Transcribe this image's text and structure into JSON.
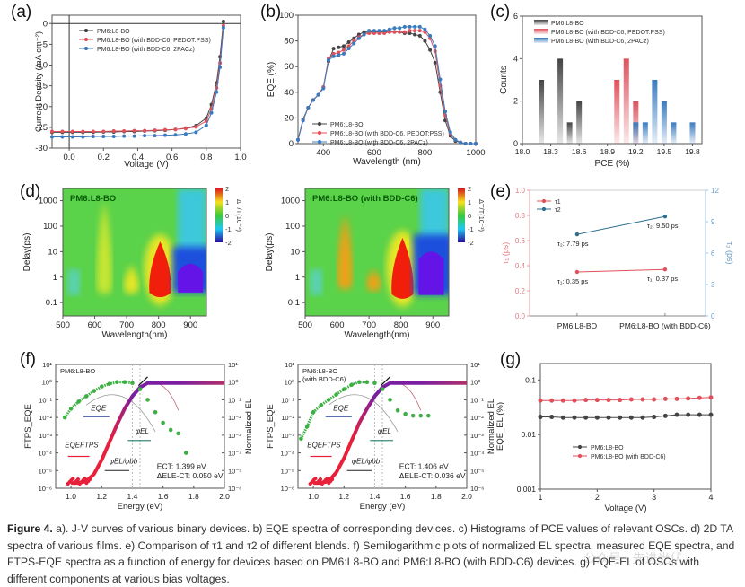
{
  "figure": {
    "caption_label": "Figure 4.",
    "caption_text": " a). J-V curves of various binary devices. b) EQE spectra of corresponding devices. c) Histograms of PCE values of relevant OSCs. d) 2D TA spectra of various films. e) Comparison of τ1 and τ2 of different blends. f) Semilogarithmic plots of normalized EL spectra, measured EQE spectra, and FTPS-EQE spectra as a function of energy for devices based on PM6:L8-BO and PM6:L8-BO (with BDD-C6) devices. g) EQE-EL of OSCs with different components at various bias voltages.",
    "watermark": "公众号 · 先进光伏"
  },
  "colors": {
    "black": "#444444",
    "red": "#e0505a",
    "blue": "#3a7bbf",
    "green": "#3cb043",
    "purple": "#7a1fa0"
  },
  "chart_data": [
    {
      "id": "a",
      "panel_label": "(a)",
      "type": "line",
      "xlabel": "Voltage (V)",
      "ylabel": "Current Density (mA cm⁻²)",
      "xlim": [
        -0.1,
        1.0
      ],
      "ylim": [
        -30,
        2
      ],
      "xticks": [
        0.0,
        0.2,
        0.4,
        0.6,
        0.8,
        1.0
      ],
      "yticks": [
        0,
        -5,
        -10,
        -15,
        -20,
        -25,
        -30
      ],
      "legend_position": "top-left",
      "x": [
        -0.1,
        -0.04,
        0.02,
        0.08,
        0.14,
        0.2,
        0.26,
        0.32,
        0.38,
        0.44,
        0.5,
        0.56,
        0.62,
        0.68,
        0.74,
        0.8,
        0.83,
        0.86,
        0.88,
        0.9
      ],
      "series": [
        {
          "name": "PM6:L8-BO",
          "color": "#444444",
          "values": [
            -26.2,
            -26.2,
            -26.2,
            -26.2,
            -26.2,
            -26.1,
            -26.1,
            -26.0,
            -26.0,
            -25.9,
            -25.8,
            -25.7,
            -25.5,
            -25.2,
            -24.6,
            -22.8,
            -19.5,
            -14.3,
            -8.0,
            0.5
          ]
        },
        {
          "name": "PM6:L8-BO (with BDD-C6, PEDOT:PSS)",
          "color": "#e0505a",
          "values": [
            -26.0,
            -26.0,
            -26.0,
            -26.0,
            -26.0,
            -26.0,
            -25.9,
            -25.9,
            -25.8,
            -25.8,
            -25.7,
            -25.6,
            -25.5,
            -25.3,
            -24.9,
            -23.5,
            -20.5,
            -15.5,
            -9.5,
            -0.5
          ]
        },
        {
          "name": "PM6:L8-BO (with BDD-C6, 2PACz)",
          "color": "#3a7bbf",
          "values": [
            -27.3,
            -27.3,
            -27.3,
            -27.3,
            -27.2,
            -27.2,
            -27.2,
            -27.1,
            -27.1,
            -27.0,
            -27.0,
            -26.9,
            -26.8,
            -26.6,
            -26.2,
            -24.5,
            -21.5,
            -16.5,
            -10.5,
            -1.0
          ]
        }
      ]
    },
    {
      "id": "b",
      "panel_label": "(b)",
      "type": "line",
      "xlabel": "Wavelength (nm)",
      "ylabel": "EQE (%)",
      "xlim": [
        300,
        1000
      ],
      "ylim": [
        0,
        100
      ],
      "xticks": [
        400,
        600,
        800,
        1000
      ],
      "yticks": [
        0,
        20,
        40,
        60,
        80,
        100
      ],
      "legend_position": "bottom-left",
      "x": [
        300,
        320,
        340,
        360,
        380,
        400,
        420,
        440,
        460,
        480,
        500,
        520,
        540,
        560,
        580,
        600,
        620,
        640,
        660,
        680,
        700,
        720,
        740,
        760,
        780,
        800,
        820,
        840,
        860,
        880,
        900,
        920,
        940,
        960,
        980,
        1000
      ],
      "series": [
        {
          "name": "PM6:L8-BO",
          "color": "#444444",
          "values": [
            3,
            19,
            28,
            34,
            38,
            44,
            64,
            74,
            75,
            76,
            79,
            82,
            85,
            87,
            87,
            87,
            87,
            87,
            87,
            87,
            87,
            86,
            86,
            85,
            84,
            80,
            73,
            63,
            40,
            18,
            6,
            2,
            1,
            0,
            0,
            0
          ]
        },
        {
          "name": "PM6:L8-BO (with BDD-C6, PEDOT:PSS)",
          "color": "#e0505a",
          "values": [
            3,
            18,
            28,
            34,
            38,
            44,
            66,
            70,
            71,
            73,
            76,
            80,
            83,
            85,
            86,
            86,
            86,
            86,
            87,
            87,
            87,
            87,
            88,
            88,
            88,
            87,
            82,
            72,
            45,
            22,
            8,
            3,
            1,
            0,
            0,
            0
          ]
        },
        {
          "name": "PM6:L8-BO (with BDD-C6, 2PACz)",
          "color": "#3a7bbf",
          "values": [
            3,
            18,
            28,
            34,
            38,
            43,
            65,
            68,
            69,
            70,
            74,
            78,
            82,
            85,
            88,
            88,
            88,
            88,
            89,
            90,
            90,
            91,
            91,
            91,
            91,
            89,
            84,
            76,
            50,
            25,
            9,
            3,
            1,
            0,
            0,
            0
          ]
        }
      ]
    },
    {
      "id": "c",
      "panel_label": "(c)",
      "type": "bar",
      "xlabel": "PCE (%)",
      "ylabel": "Counts",
      "xlim": [
        18.0,
        19.9
      ],
      "ylim": [
        0,
        6
      ],
      "xticks": [
        18.0,
        18.3,
        18.6,
        18.9,
        19.2,
        19.5,
        19.8
      ],
      "yticks": [
        0,
        2,
        4,
        6
      ],
      "legend_position": "top-left",
      "series": [
        {
          "name": "PM6:L8-BO",
          "color": "#444444",
          "x": [
            18.2,
            18.4,
            18.5,
            18.6
          ],
          "values": [
            3,
            4,
            1,
            2
          ]
        },
        {
          "name": "PM6:L8-BO (with BDD-C6, PEDOT:PSS)",
          "color": "#e0505a",
          "x": [
            19.0,
            19.1,
            19.2
          ],
          "values": [
            3,
            4,
            2
          ]
        },
        {
          "name": "PM6:L8-BO (with BDD-C6, 2PACz)",
          "color": "#3a7bbf",
          "x": [
            19.2,
            19.3,
            19.4,
            19.5,
            19.6,
            19.8
          ],
          "values": [
            1,
            1,
            3,
            2,
            1,
            1
          ]
        }
      ]
    },
    {
      "id": "d1",
      "panel_label": "(d)",
      "type": "heatmap",
      "title": "PM6:L8-BO",
      "xlabel": "Wavelength(nm)",
      "ylabel": "Delay(ps)",
      "xlim": [
        500,
        950
      ],
      "ylim_log": [
        0.03,
        3000
      ],
      "xticks": [
        500,
        600,
        700,
        800,
        900
      ],
      "yticks": [
        "0.1",
        "1",
        "10",
        "100",
        "1000"
      ],
      "colorbar": {
        "label": "ΔT/T(10⁻³)",
        "ticks": [
          2,
          1,
          0,
          -1,
          -2
        ]
      },
      "features": [
        {
          "wavelength": 630,
          "delay_range": [
            0.2,
            1000
          ],
          "value": 0.8
        },
        {
          "wavelength": 715,
          "delay_range": [
            0.2,
            3
          ],
          "value": 1.0
        },
        {
          "wavelength": 805,
          "delay_range": [
            0.15,
            25
          ],
          "value": 2.0
        },
        {
          "wavelength": 900,
          "delay_range": [
            0.25,
            5
          ],
          "value": -2.0
        }
      ]
    },
    {
      "id": "d2",
      "type": "heatmap",
      "title": "PM6:L8-BO (with BDD-C6)",
      "xlabel": "Wavelength(nm)",
      "ylabel": "Delay(ps)",
      "xlim": [
        500,
        950
      ],
      "ylim_log": [
        0.03,
        3000
      ],
      "xticks": [
        500,
        600,
        700,
        800,
        900
      ],
      "yticks": [
        "0.1",
        "1",
        "10",
        "100",
        "1000"
      ],
      "colorbar": {
        "label": "ΔT/T(10⁻³)",
        "ticks": [
          2,
          1,
          0,
          -1,
          -2
        ]
      },
      "features": [
        {
          "wavelength": 625,
          "delay_range": [
            0.3,
            300
          ],
          "value": 1.5
        },
        {
          "wavelength": 715,
          "delay_range": [
            0.25,
            2
          ],
          "value": 1.3
        },
        {
          "wavelength": 805,
          "delay_range": [
            0.13,
            35
          ],
          "value": 2.0
        },
        {
          "wavelength": 895,
          "delay_range": [
            0.2,
            15
          ],
          "value": -2.0
        }
      ]
    },
    {
      "id": "e",
      "panel_label": "(e)",
      "type": "line",
      "categories": [
        "PM6:L8-BO",
        "PM6:L8-BO (with BDD-C6)"
      ],
      "ylabel_left": "τ₁ (ps)",
      "ylabel_right": "τ₂ (ps)",
      "ylim_left": [
        0,
        1.0
      ],
      "ylim_right": [
        0,
        12
      ],
      "yticks_left": [
        "0.0",
        "0.2",
        "0.4",
        "0.6",
        "0.8",
        "1.0"
      ],
      "yticks_right": [
        0,
        3,
        6,
        9,
        12
      ],
      "legend_position": "top-left",
      "series": [
        {
          "name": "τ1",
          "axis": "left",
          "color": "#e0505a",
          "values": [
            0.35,
            0.37
          ],
          "labels": [
            "τ₁: 0.35 ps",
            "τ₁: 0.37 ps"
          ]
        },
        {
          "name": "τ2",
          "axis": "right",
          "color": "#2e6f8e",
          "values": [
            7.79,
            9.5
          ],
          "labels": [
            "τ₂: 7.79 ps",
            "τ₂: 9.50 ps"
          ]
        }
      ]
    },
    {
      "id": "f1",
      "panel_label": "(f)",
      "type": "scatter",
      "title": "PM6:L8-BO",
      "xlabel": "Energy (eV)",
      "ylabel_left": "FTPS_EQE",
      "ylabel_right": "Normalized EL",
      "xlim": [
        0.9,
        2.0
      ],
      "ylim_log_exp": [
        -6,
        1
      ],
      "xticks": [
        "1.0",
        "1.2",
        "1.4",
        "1.6",
        "1.8",
        "2.0"
      ],
      "yticks_exp": [
        1,
        0,
        -1,
        -2,
        -3,
        -4,
        -5,
        -6
      ],
      "annotations": {
        "ect": "1.399 eV",
        "delta": "0.050 eV",
        "eqe": "EQE",
        "eqe_ftps": "EQE",
        "phi_el": "φEL",
        "phi_ratio": "φEL/φbb"
      },
      "el_points_x": [
        0.96,
        1.0,
        1.05,
        1.1,
        1.15,
        1.2,
        1.25,
        1.3,
        1.35,
        1.4,
        1.45,
        1.5,
        1.55,
        1.6,
        1.65,
        1.7,
        1.75
      ],
      "el_points_logy": [
        -2.0,
        -1.5,
        -1.1,
        -0.8,
        -0.5,
        -0.25,
        -0.1,
        0,
        0,
        -0.05,
        -0.4,
        -1.0,
        -1.7,
        -2.3,
        -2.7,
        -2.9,
        -4.0
      ],
      "eqe_x": [
        1.0,
        1.05,
        1.1,
        1.15,
        1.2,
        1.25,
        1.3,
        1.35,
        1.4,
        1.45,
        1.5,
        1.6,
        1.8,
        2.0
      ],
      "eqe_logy": [
        -5.7,
        -5.7,
        -5.6,
        -5.2,
        -4.4,
        -3.4,
        -2.4,
        -1.5,
        -0.8,
        -0.3,
        -0.05,
        -0.05,
        -0.05,
        -0.05
      ]
    },
    {
      "id": "f2",
      "type": "scatter",
      "title": "PM6:L8-BO\n(with BDD-C6)",
      "xlabel": "Energy (eV)",
      "ylabel_left": "FTPS_EQE",
      "ylabel_right": "Normalized EL",
      "xlim": [
        0.9,
        2.0
      ],
      "ylim_log_exp": [
        -6,
        1
      ],
      "xticks": [
        "1.0",
        "1.2",
        "1.4",
        "1.6",
        "1.8",
        "2.0"
      ],
      "yticks_exp": [
        1,
        0,
        -1,
        -2,
        -3,
        -4,
        -5,
        -6
      ],
      "annotations": {
        "ect": "1.406 eV",
        "delta": "0.036 eV",
        "eqe": "EQE",
        "eqe_ftps": "EQE",
        "phi_el": "φEL",
        "phi_ratio": "φEL/φbb"
      },
      "el_points_x": [
        0.92,
        0.96,
        1.0,
        1.05,
        1.1,
        1.15,
        1.2,
        1.25,
        1.3,
        1.35,
        1.4,
        1.45,
        1.5,
        1.55,
        1.6,
        1.65,
        1.7,
        1.75
      ],
      "el_points_logy": [
        -3.2,
        -2.5,
        -1.7,
        -1.3,
        -1.0,
        -0.7,
        -0.4,
        -0.15,
        0,
        0,
        -0.05,
        -0.4,
        -1.0,
        -1.6,
        -1.8,
        -1.9,
        -1.9,
        -1.9
      ],
      "eqe_x": [
        1.0,
        1.05,
        1.1,
        1.15,
        1.2,
        1.25,
        1.3,
        1.35,
        1.4,
        1.45,
        1.5,
        1.6,
        1.8,
        2.0
      ],
      "eqe_logy": [
        -5.7,
        -5.7,
        -5.6,
        -5.1,
        -4.3,
        -3.3,
        -2.3,
        -1.5,
        -0.8,
        -0.3,
        -0.05,
        -0.05,
        -0.05,
        -0.05
      ]
    },
    {
      "id": "g",
      "panel_label": "(g)",
      "type": "line",
      "xlabel": "Voltage (V)",
      "ylabel": "EQE_EL (%)",
      "xlim": [
        1,
        4
      ],
      "ylim_log": [
        0.001,
        0.2
      ],
      "xticks": [
        1,
        2,
        3,
        4
      ],
      "yticks": [
        "0.001",
        "0.01",
        "0.1"
      ],
      "legend_position": "center-left",
      "x": [
        1.0,
        1.2,
        1.4,
        1.6,
        1.8,
        2.0,
        2.2,
        2.4,
        2.6,
        2.8,
        3.0,
        3.2,
        3.4,
        3.6,
        3.8,
        4.0
      ],
      "series": [
        {
          "name": "PM6:L8-BO",
          "color": "#444444",
          "values": [
            0.021,
            0.021,
            0.0205,
            0.0205,
            0.0205,
            0.0205,
            0.0205,
            0.0205,
            0.0205,
            0.0205,
            0.021,
            0.022,
            0.023,
            0.023,
            0.023,
            0.023
          ]
        },
        {
          "name": "PM6:L8-BO (with BDD-C6)",
          "color": "#e0505a",
          "values": [
            0.042,
            0.042,
            0.042,
            0.042,
            0.043,
            0.043,
            0.043,
            0.043,
            0.044,
            0.044,
            0.044,
            0.045,
            0.045,
            0.046,
            0.047,
            0.048
          ]
        }
      ]
    }
  ]
}
